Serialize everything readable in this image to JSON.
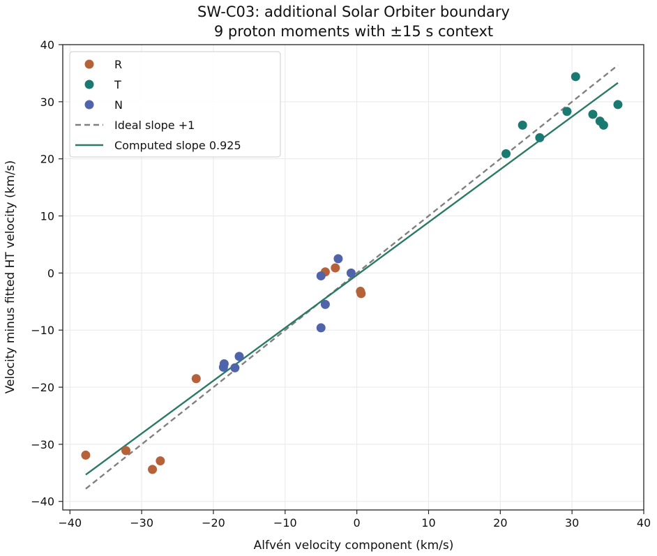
{
  "chart_data": {
    "type": "scatter",
    "title": "SW-C03: additional Solar Orbiter boundary",
    "subtitle": "9 proton moments with ±15 s context",
    "xlabel": "Alfvén velocity component (km/s)",
    "ylabel": "Velocity minus fitted HT velocity (km/s)",
    "xlim": [
      -41,
      40
    ],
    "ylim": [
      -41.5,
      40
    ],
    "xticks": [
      -40,
      -30,
      -20,
      -10,
      0,
      10,
      20,
      30,
      40
    ],
    "yticks": [
      -40,
      -30,
      -20,
      -10,
      0,
      10,
      20,
      30,
      40
    ],
    "xtick_labels": [
      "−40",
      "−30",
      "−20",
      "−10",
      "0",
      "10",
      "20",
      "30",
      "40"
    ],
    "ytick_labels": [
      "−40",
      "−30",
      "−20",
      "−10",
      "0",
      "10",
      "20",
      "30",
      "40"
    ],
    "grid": true,
    "legend_position": "top-left",
    "series": [
      {
        "name": "R",
        "color": "#b5623a",
        "points": [
          {
            "x": -37.8,
            "y": -31.9
          },
          {
            "x": -32.2,
            "y": -31.1
          },
          {
            "x": -28.5,
            "y": -34.4
          },
          {
            "x": -27.4,
            "y": -32.9
          },
          {
            "x": -22.4,
            "y": -18.5
          },
          {
            "x": -4.4,
            "y": 0.2
          },
          {
            "x": -3.0,
            "y": 0.9
          },
          {
            "x": 0.5,
            "y": -3.2
          },
          {
            "x": 0.6,
            "y": -3.6
          }
        ]
      },
      {
        "name": "T",
        "color": "#1a7a72",
        "points": [
          {
            "x": 20.8,
            "y": 20.9
          },
          {
            "x": 23.1,
            "y": 25.9
          },
          {
            "x": 25.5,
            "y": 23.7
          },
          {
            "x": 29.3,
            "y": 28.3
          },
          {
            "x": 30.5,
            "y": 34.4
          },
          {
            "x": 32.9,
            "y": 27.8
          },
          {
            "x": 33.9,
            "y": 26.6
          },
          {
            "x": 34.4,
            "y": 25.9
          },
          {
            "x": 36.4,
            "y": 29.5
          }
        ]
      },
      {
        "name": "N",
        "color": "#4f64aa",
        "points": [
          {
            "x": -18.6,
            "y": -16.5
          },
          {
            "x": -18.5,
            "y": -15.9
          },
          {
            "x": -17.0,
            "y": -16.6
          },
          {
            "x": -16.4,
            "y": -14.6
          },
          {
            "x": -5.0,
            "y": -0.5
          },
          {
            "x": -5.0,
            "y": -9.6
          },
          {
            "x": -4.4,
            "y": -5.5
          },
          {
            "x": -2.6,
            "y": 2.5
          },
          {
            "x": -0.8,
            "y": 0.0
          }
        ]
      }
    ],
    "lines": [
      {
        "name": "Ideal slope +1",
        "color": "#808080",
        "dash": true,
        "slope": 1.0,
        "intercept": 0.0,
        "x_range": [
          -37.8,
          36.4
        ]
      },
      {
        "name": "Computed slope 0.925",
        "color": "#2b7a63",
        "dash": false,
        "slope": 0.925,
        "intercept": -0.36,
        "x_range": [
          -37.8,
          36.4
        ]
      }
    ]
  }
}
